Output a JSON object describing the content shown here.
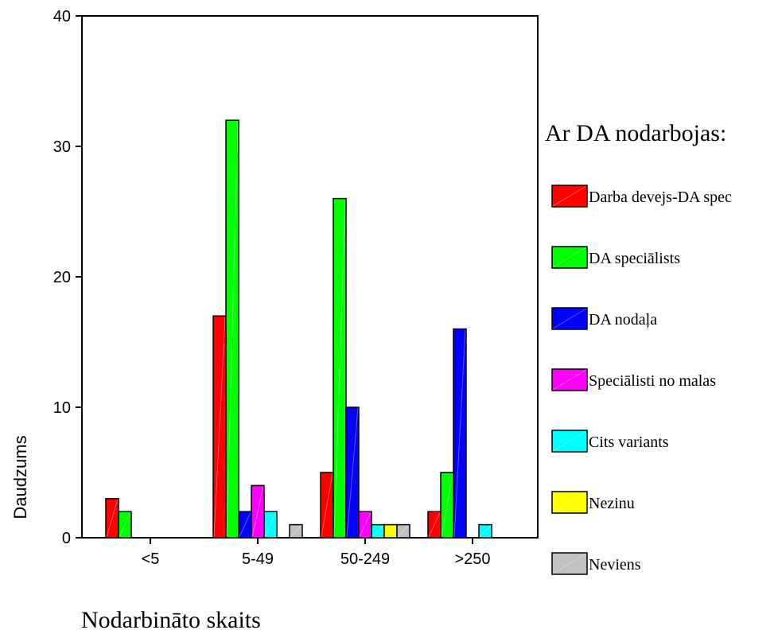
{
  "chart_data": {
    "type": "bar",
    "categories": [
      "<5",
      "5-49",
      "50-249",
      ">250"
    ],
    "series": [
      {
        "name": "Darba devejs-DA spec",
        "color": "#ff0000",
        "values": [
          3,
          17,
          5,
          2
        ]
      },
      {
        "name": "DA speciālists",
        "color": "#00ff00",
        "values": [
          2,
          32,
          26,
          5
        ]
      },
      {
        "name": "DA nodaļa",
        "color": "#0000ff",
        "values": [
          0,
          2,
          10,
          16
        ]
      },
      {
        "name": "Speciālisti no malas",
        "color": "#ff00ff",
        "values": [
          0,
          4,
          2,
          0
        ]
      },
      {
        "name": "Cits variants",
        "color": "#00ffff",
        "values": [
          0,
          2,
          1,
          1
        ]
      },
      {
        "name": "Nezinu",
        "color": "#ffff00",
        "values": [
          0,
          0,
          1,
          0
        ]
      },
      {
        "name": "Neviens",
        "color": "#c0c0c0",
        "values": [
          0,
          1,
          1,
          0
        ]
      }
    ],
    "title": "",
    "xlabel": "Nodarbināto skaits",
    "ylabel": "Daudzums",
    "ylim": [
      0,
      40
    ],
    "yticks": [
      0,
      10,
      20,
      30,
      40
    ],
    "legend_title": "Ar DA nodarbojas:",
    "legend_position": "right",
    "grid": false
  }
}
